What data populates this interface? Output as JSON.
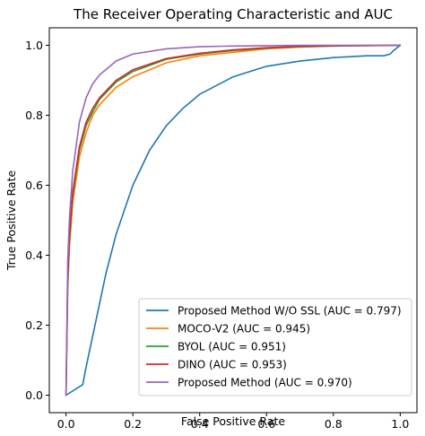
{
  "chart_data": {
    "type": "line",
    "title": "The Receiver Operating Characteristic and AUC",
    "xlabel": "False Positive Rate",
    "ylabel": "True Positive Rate",
    "xlim": [
      -0.05,
      1.05
    ],
    "ylim": [
      -0.05,
      1.05
    ],
    "xticks": [
      "0.0",
      "0.2",
      "0.4",
      "0.6",
      "0.8",
      "1.0"
    ],
    "yticks": [
      "0.0",
      "0.2",
      "0.4",
      "0.6",
      "0.8",
      "1.0"
    ],
    "grid": false,
    "legend_position": "lower-right",
    "series": [
      {
        "name": "Proposed Method W/O SSL (AUC = 0.797)",
        "color": "#1f77b4",
        "x": [
          0.0,
          0.05,
          0.06,
          0.08,
          0.1,
          0.12,
          0.15,
          0.2,
          0.25,
          0.3,
          0.35,
          0.4,
          0.5,
          0.6,
          0.7,
          0.8,
          0.9,
          0.95,
          0.97,
          0.98,
          1.0
        ],
        "y": [
          0.0,
          0.03,
          0.08,
          0.17,
          0.26,
          0.35,
          0.46,
          0.6,
          0.7,
          0.77,
          0.82,
          0.86,
          0.91,
          0.94,
          0.955,
          0.965,
          0.97,
          0.97,
          0.975,
          0.985,
          1.0
        ]
      },
      {
        "name": "MOCO-V2 (AUC = 0.945)",
        "color": "#ff7f0e",
        "x": [
          0.0,
          0.005,
          0.01,
          0.02,
          0.04,
          0.06,
          0.08,
          0.1,
          0.15,
          0.2,
          0.3,
          0.4,
          0.5,
          0.6,
          0.7,
          0.8,
          1.0
        ],
        "y": [
          0.0,
          0.3,
          0.42,
          0.55,
          0.68,
          0.75,
          0.8,
          0.83,
          0.88,
          0.91,
          0.95,
          0.97,
          0.98,
          0.99,
          0.995,
          0.998,
          1.0
        ]
      },
      {
        "name": "BYOL (AUC = 0.951)",
        "color": "#2ca02c",
        "x": [
          0.0,
          0.005,
          0.01,
          0.02,
          0.04,
          0.06,
          0.08,
          0.1,
          0.15,
          0.2,
          0.3,
          0.4,
          0.5,
          0.6,
          0.7,
          0.8,
          1.0
        ],
        "y": [
          0.0,
          0.32,
          0.44,
          0.57,
          0.7,
          0.77,
          0.81,
          0.845,
          0.895,
          0.925,
          0.96,
          0.975,
          0.985,
          0.992,
          0.996,
          0.998,
          1.0
        ]
      },
      {
        "name": "DINO (AUC = 0.953)",
        "color": "#d62728",
        "x": [
          0.0,
          0.005,
          0.01,
          0.02,
          0.04,
          0.06,
          0.08,
          0.1,
          0.15,
          0.2,
          0.3,
          0.4,
          0.5,
          0.6,
          0.7,
          0.8,
          1.0
        ],
        "y": [
          0.0,
          0.33,
          0.45,
          0.58,
          0.71,
          0.78,
          0.82,
          0.85,
          0.9,
          0.93,
          0.962,
          0.977,
          0.987,
          0.993,
          0.997,
          0.999,
          1.0
        ]
      },
      {
        "name": "Proposed Method (AUC = 0.970)",
        "color": "#9467bd",
        "x": [
          0.0,
          0.005,
          0.01,
          0.02,
          0.04,
          0.06,
          0.08,
          0.1,
          0.15,
          0.2,
          0.3,
          0.4,
          0.5,
          0.6,
          0.7,
          0.8,
          1.0
        ],
        "y": [
          0.0,
          0.38,
          0.5,
          0.64,
          0.78,
          0.85,
          0.89,
          0.915,
          0.955,
          0.975,
          0.99,
          0.996,
          0.998,
          0.999,
          1.0,
          1.0,
          1.0
        ]
      }
    ]
  }
}
